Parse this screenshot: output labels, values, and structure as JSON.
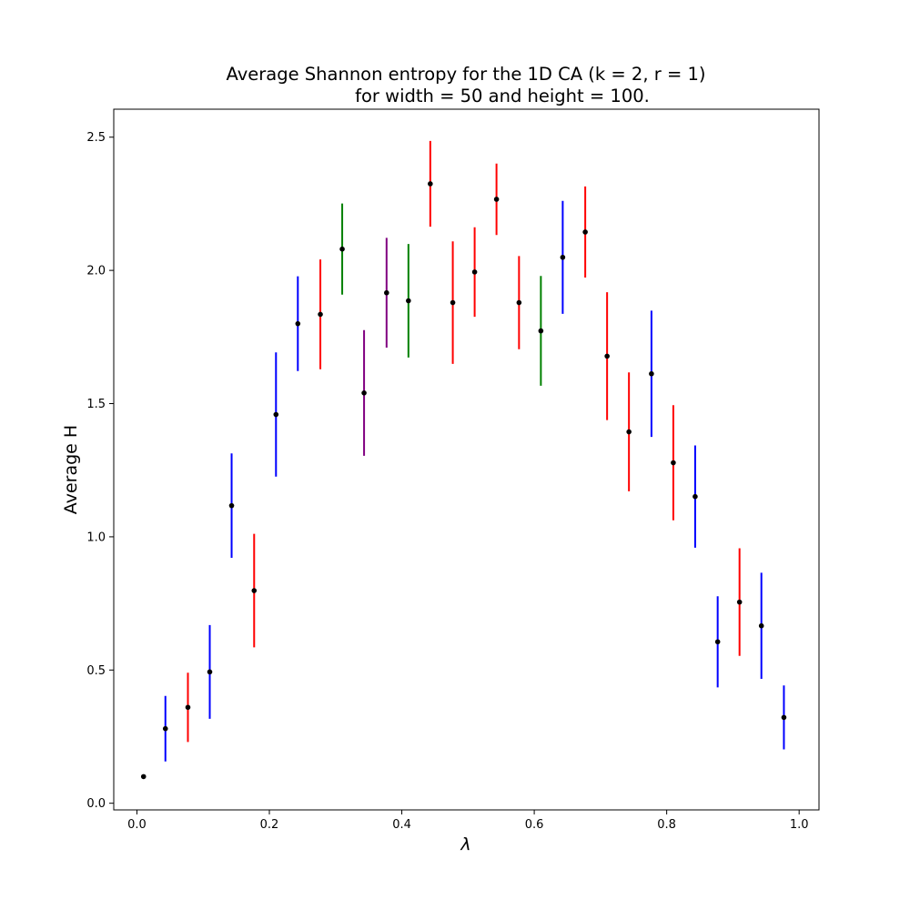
{
  "chart_data": {
    "type": "scatter",
    "title_lines": [
      "Average Shannon entropy for the 1D CA (k = 2, r = 1)",
      "for width = 50 and height = 100."
    ],
    "xlabel": "λ",
    "ylabel": "Average H",
    "xlim": [
      -0.035,
      1.03
    ],
    "ylim": [
      -0.025,
      2.605
    ],
    "x_ticks": [
      0.0,
      0.2,
      0.4,
      0.6,
      0.8,
      1.0
    ],
    "x_tick_labels": [
      "0.0",
      "0.2",
      "0.4",
      "0.6",
      "0.8",
      "1.0"
    ],
    "y_ticks": [
      0.0,
      0.5,
      1.0,
      1.5,
      2.0,
      2.5
    ],
    "y_tick_labels": [
      "0.0",
      "0.5",
      "1.0",
      "1.5",
      "2.0",
      "2.5"
    ],
    "grid": false,
    "legend": "none",
    "marker_color": "#000000",
    "points": [
      {
        "x": 0.01,
        "y": 0.1,
        "err": 0.0,
        "color": "#0000ff"
      },
      {
        "x": 0.043,
        "y": 0.28,
        "err": 0.123,
        "color": "#0000ff"
      },
      {
        "x": 0.077,
        "y": 0.36,
        "err": 0.13,
        "color": "#ff0000"
      },
      {
        "x": 0.11,
        "y": 0.493,
        "err": 0.176,
        "color": "#0000ff"
      },
      {
        "x": 0.143,
        "y": 1.117,
        "err": 0.196,
        "color": "#0000ff"
      },
      {
        "x": 0.177,
        "y": 0.798,
        "err": 0.213,
        "color": "#ff0000"
      },
      {
        "x": 0.21,
        "y": 1.459,
        "err": 0.233,
        "color": "#0000ff"
      },
      {
        "x": 0.243,
        "y": 1.8,
        "err": 0.178,
        "color": "#0000ff"
      },
      {
        "x": 0.277,
        "y": 1.835,
        "err": 0.206,
        "color": "#ff0000"
      },
      {
        "x": 0.31,
        "y": 2.08,
        "err": 0.171,
        "color": "#008000"
      },
      {
        "x": 0.343,
        "y": 1.54,
        "err": 0.236,
        "color": "#800080"
      },
      {
        "x": 0.377,
        "y": 1.916,
        "err": 0.206,
        "color": "#800080"
      },
      {
        "x": 0.41,
        "y": 1.886,
        "err": 0.213,
        "color": "#008000"
      },
      {
        "x": 0.443,
        "y": 2.325,
        "err": 0.161,
        "color": "#ff0000"
      },
      {
        "x": 0.477,
        "y": 1.879,
        "err": 0.23,
        "color": "#ff0000"
      },
      {
        "x": 0.51,
        "y": 1.994,
        "err": 0.168,
        "color": "#ff0000"
      },
      {
        "x": 0.543,
        "y": 2.267,
        "err": 0.134,
        "color": "#ff0000"
      },
      {
        "x": 0.577,
        "y": 1.879,
        "err": 0.175,
        "color": "#ff0000"
      },
      {
        "x": 0.61,
        "y": 1.773,
        "err": 0.206,
        "color": "#008000"
      },
      {
        "x": 0.643,
        "y": 2.049,
        "err": 0.212,
        "color": "#0000ff"
      },
      {
        "x": 0.677,
        "y": 2.144,
        "err": 0.171,
        "color": "#ff0000"
      },
      {
        "x": 0.71,
        "y": 1.678,
        "err": 0.24,
        "color": "#ff0000"
      },
      {
        "x": 0.743,
        "y": 1.394,
        "err": 0.223,
        "color": "#ff0000"
      },
      {
        "x": 0.777,
        "y": 1.612,
        "err": 0.237,
        "color": "#0000ff"
      },
      {
        "x": 0.81,
        "y": 1.278,
        "err": 0.216,
        "color": "#ff0000"
      },
      {
        "x": 0.843,
        "y": 1.151,
        "err": 0.192,
        "color": "#0000ff"
      },
      {
        "x": 0.877,
        "y": 0.606,
        "err": 0.171,
        "color": "#0000ff"
      },
      {
        "x": 0.91,
        "y": 0.755,
        "err": 0.202,
        "color": "#ff0000"
      },
      {
        "x": 0.943,
        "y": 0.666,
        "err": 0.199,
        "color": "#0000ff"
      },
      {
        "x": 0.977,
        "y": 0.322,
        "err": 0.12,
        "color": "#0000ff"
      }
    ]
  }
}
